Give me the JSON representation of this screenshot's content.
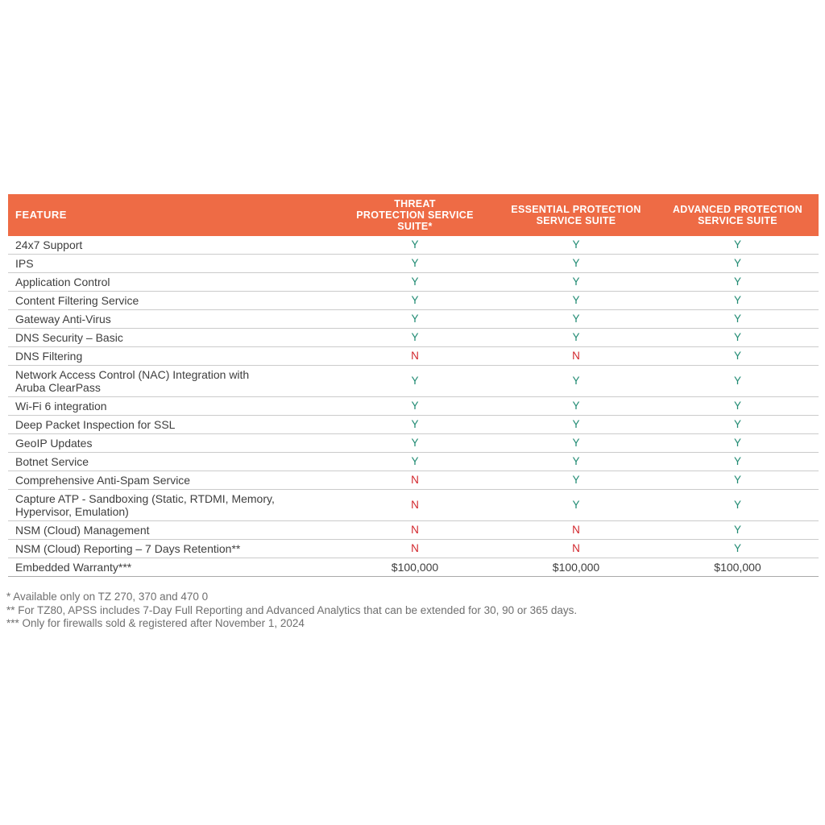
{
  "colors": {
    "header_bg": "#EE6B45",
    "yes_green": "#1F8A72",
    "no_red": "#D2262C",
    "row_text": "#3E3E3E",
    "border": "#CBCBCB",
    "footnote_text": "#6F6F6F"
  },
  "table": {
    "columns": [
      {
        "label": "FEATURE"
      },
      {
        "label": "THREAT\nPROTECTION SERVICE\nSUITE*"
      },
      {
        "label": "ESSENTIAL PROTECTION\nSERVICE SUITE"
      },
      {
        "label": "ADVANCED PROTECTION\nSERVICE SUITE"
      }
    ],
    "rows": [
      {
        "feature": "24x7 Support",
        "values": [
          "Y",
          "Y",
          "Y"
        ]
      },
      {
        "feature": "IPS",
        "values": [
          "Y",
          "Y",
          "Y"
        ]
      },
      {
        "feature": "Application Control",
        "values": [
          "Y",
          "Y",
          "Y"
        ]
      },
      {
        "feature": "Content Filtering Service",
        "values": [
          "Y",
          "Y",
          "Y"
        ]
      },
      {
        "feature": "Gateway Anti-Virus",
        "values": [
          "Y",
          "Y",
          "Y"
        ]
      },
      {
        "feature": "DNS Security – Basic",
        "values": [
          "Y",
          "Y",
          "Y"
        ]
      },
      {
        "feature": "DNS Filtering",
        "values": [
          "N",
          "N",
          "Y"
        ]
      },
      {
        "feature": "Network Access Control (NAC) Integration with\nAruba ClearPass",
        "values": [
          "Y",
          "Y",
          "Y"
        ]
      },
      {
        "feature": "Wi-Fi 6 integration",
        "values": [
          "Y",
          "Y",
          "Y"
        ]
      },
      {
        "feature": "Deep Packet Inspection for SSL",
        "values": [
          "Y",
          "Y",
          "Y"
        ]
      },
      {
        "feature": "GeoIP Updates",
        "values": [
          "Y",
          "Y",
          "Y"
        ]
      },
      {
        "feature": "Botnet Service",
        "values": [
          "Y",
          "Y",
          "Y"
        ]
      },
      {
        "feature": "Comprehensive Anti-Spam Service",
        "values": [
          "N",
          "Y",
          "Y"
        ]
      },
      {
        "feature": "Capture ATP -  Sandboxing (Static, RTDMI, Memory,\nHypervisor, Emulation)",
        "values": [
          "N",
          "Y",
          "Y"
        ]
      },
      {
        "feature": "NSM (Cloud) Management",
        "values": [
          "N",
          "N",
          "Y"
        ]
      },
      {
        "feature": "NSM (Cloud) Reporting – 7 Days Retention**",
        "values": [
          "N",
          "N",
          "Y"
        ]
      },
      {
        "feature": "Embedded Warranty***",
        "values": [
          "$100,000",
          "$100,000",
          "$100,000"
        ]
      }
    ]
  },
  "footnotes": [
    "* Available only on TZ 270, 370 and 470 0",
    "** For TZ80, APSS includes 7-Day Full Reporting and Advanced Analytics that can be extended for 30, 90 or 365 days.",
    "*** Only for firewalls sold & registered after November 1, 2024"
  ]
}
